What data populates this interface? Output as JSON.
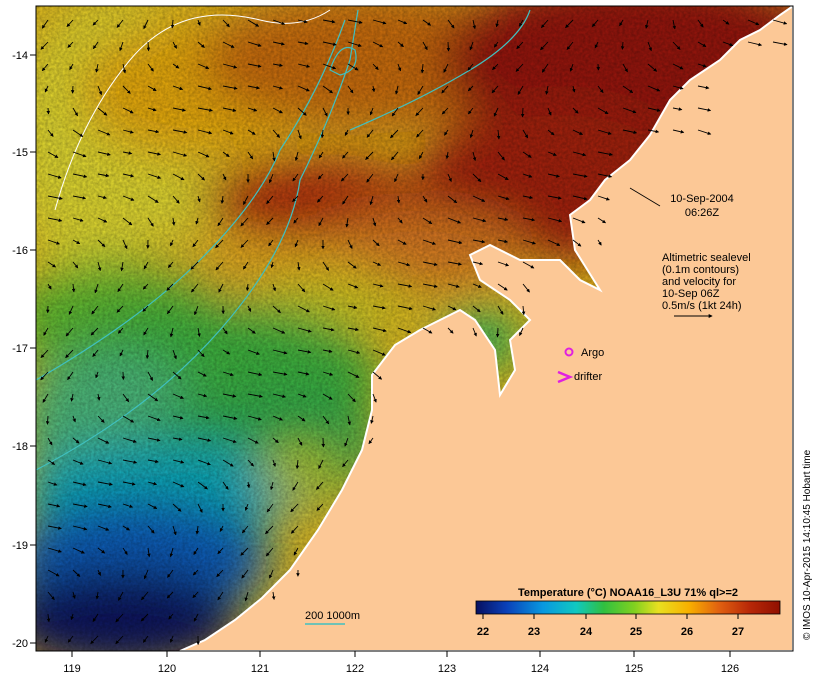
{
  "date_label": "10-Sep-2004",
  "time_label": "06:26Z",
  "altimetry_note": [
    "Altimetric sealevel",
    "(0.1m contours)",
    "and velocity for",
    "10-Sep 06Z",
    "0.5m/s (1kt 24h)"
  ],
  "legend": {
    "argo_label": "Argo",
    "drifter_label": "drifter",
    "argo_color": "#e020e0",
    "drifter_color": "#e020e0"
  },
  "depth_legend": {
    "label": "200  1000m",
    "color": "#40c0c0"
  },
  "colorbar": {
    "title": "Temperature (°C) NOAA16_L3U 71% ql>=2",
    "ticks": [
      "22",
      "23",
      "24",
      "25",
      "26",
      "27"
    ],
    "colors": [
      "#081060",
      "#0a40b8",
      "#0898e0",
      "#10c8c0",
      "#30c040",
      "#80d020",
      "#e8e020",
      "#f8b000",
      "#e06010",
      "#b82808",
      "#901000"
    ]
  },
  "axes": {
    "lon_labels": [
      "119",
      "120",
      "121",
      "122",
      "123",
      "124",
      "125",
      "126"
    ],
    "lat_labels": [
      "-14",
      "-15",
      "-16",
      "-17",
      "-18",
      "-19",
      "-20"
    ]
  },
  "credit": "© IMOS 10-Apr-2015 14:10:45 Hobart time",
  "colors": {
    "land": "#fcc896",
    "coast": "#ffffff"
  }
}
